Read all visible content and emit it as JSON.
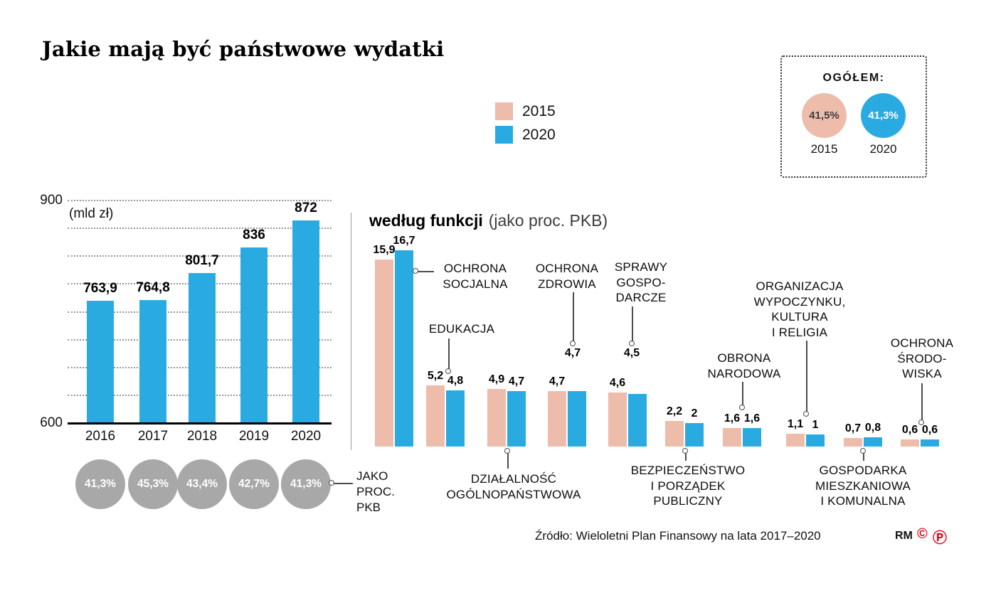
{
  "title": "Jakie mają być państwowe wydatki",
  "legend": [
    {
      "label": "2015",
      "color": "#eebcaa"
    },
    {
      "label": "2020",
      "color": "#29abe2"
    }
  ],
  "total_box": {
    "title": "OGÓŁEM:",
    "items": [
      {
        "value": "41,5%",
        "year": "2015",
        "color": "#eebcaa",
        "text_color": "#3d3d3d"
      },
      {
        "value": "41,3%",
        "year": "2020",
        "color": "#29abe2",
        "text_color": "#ffffff"
      }
    ]
  },
  "chart_data": [
    {
      "type": "bar",
      "title": "",
      "unit": "(mld zł)",
      "categories": [
        "2016",
        "2017",
        "2018",
        "2019",
        "2020"
      ],
      "values": [
        763.9,
        764.8,
        801.7,
        836,
        872
      ],
      "value_labels": [
        "763,9",
        "764,8",
        "801,7",
        "836",
        "872"
      ],
      "ylim": [
        600,
        900
      ],
      "ytick_labels": [
        "900",
        "600"
      ],
      "bar_color": "#29abe2",
      "grid": "dotted",
      "pkb_row": {
        "label": "JAKO PROC. PKB",
        "circle_color": "#a8a8a8",
        "values": [
          "41,3%",
          "45,3%",
          "43,4%",
          "42,7%",
          "41,3%"
        ]
      }
    },
    {
      "type": "bar",
      "title": "według funkcji",
      "subtitle": "(jako proc. PKB)",
      "series": [
        {
          "name": "2015",
          "color": "#eebcaa"
        },
        {
          "name": "2020",
          "color": "#29abe2"
        }
      ],
      "groups": [
        {
          "label": "OCHRONA SOCJALNA",
          "label_lines": [
            "OCHRONA",
            "SOCJALNA"
          ],
          "values": [
            15.9,
            16.7
          ],
          "value_labels": [
            "15,9",
            "16,7"
          ]
        },
        {
          "label": "EDUKACJA",
          "label_lines": [
            "EDUKACJA"
          ],
          "values": [
            5.2,
            4.8
          ],
          "value_labels": [
            "5,2",
            "4,8"
          ]
        },
        {
          "label": "DZIAŁALNOŚĆ OGÓLNOPAŃSTWOWA",
          "label_lines": [
            "DZIAŁALNOŚĆ",
            "OGÓLNOPAŃSTWOWA"
          ],
          "values": [
            4.9,
            4.7
          ],
          "value_labels": [
            "4,9",
            "4,7"
          ]
        },
        {
          "label": "OCHRONA ZDROWIA",
          "label_lines": [
            "OCHRONA",
            "ZDROWIA"
          ],
          "values": [
            4.7,
            4.7
          ],
          "value_labels": [
            "4,7",
            "4,7"
          ]
        },
        {
          "label": "SPRAWY GOSPODARCZE",
          "label_lines": [
            "SPRAWY",
            "GOSPO-",
            "DARCZE"
          ],
          "values": [
            4.6,
            4.5
          ],
          "value_labels": [
            "4,6",
            "4,5"
          ]
        },
        {
          "label": "BEZPIECZEŃSTWO I PORZĄDEK PUBLICZNY",
          "label_lines": [
            "BEZPIECZEŃSTWO",
            "I PORZĄDEK",
            "PUBLICZNY"
          ],
          "values": [
            2.2,
            2
          ],
          "value_labels": [
            "2,2",
            "2"
          ]
        },
        {
          "label": "OBRONA NARODOWA",
          "label_lines": [
            "OBRONA",
            "NARODOWA"
          ],
          "values": [
            1.6,
            1.6
          ],
          "value_labels": [
            "1,6",
            "1,6"
          ]
        },
        {
          "label": "ORGANIZACJA WYPOCZYNKU, KULTURA I RELIGIA",
          "label_lines": [
            "ORGANIZACJA",
            "WYPOCZYNKU,",
            "KULTURA",
            "I RELIGIA"
          ],
          "values": [
            1.1,
            1
          ],
          "value_labels": [
            "1,1",
            "1"
          ]
        },
        {
          "label": "GOSPODARKA MIESZKANIOWA I KOMUNALNA",
          "label_lines": [
            "GOSPODARKA",
            "MIESZKANIOWA",
            "I KOMUNALNA"
          ],
          "values": [
            0.7,
            0.8
          ],
          "value_labels": [
            "0,7",
            "0,8"
          ]
        },
        {
          "label": "OCHRONA ŚRODOWISKA",
          "label_lines": [
            "OCHRONA",
            "ŚRODO-",
            "WISKA"
          ],
          "values": [
            0.6,
            0.6
          ],
          "value_labels": [
            "0,6",
            "0,6"
          ]
        }
      ]
    }
  ],
  "footer": {
    "source": "Źródło: Wieloletni Plan Finansowy na lata 2017–2020",
    "credit": "RM",
    "marks": [
      "©",
      "Ⓟ"
    ]
  }
}
